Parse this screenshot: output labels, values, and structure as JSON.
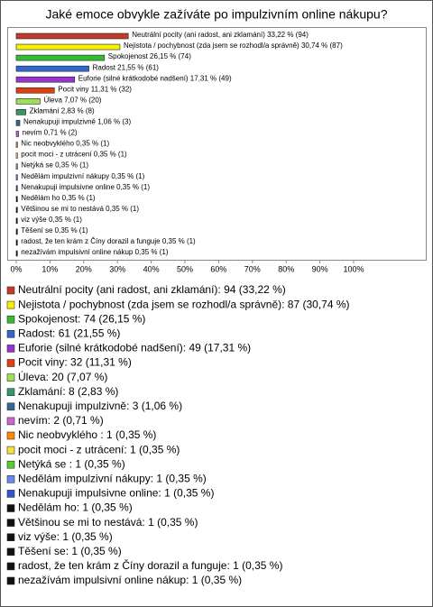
{
  "chart_data": {
    "type": "bar",
    "orientation": "horizontal",
    "title": "Jaké emoce obvykle zažíváte po impulzivním online nákupu?",
    "categories": [
      "Neutrální pocity (ani radost, ani zklamání)",
      "Nejistota / pochybnost (zda jsem se rozhodl/a správně)",
      "Spokojenost",
      "Radost",
      "Euforie (silné krátkodobé nadšení)",
      "Pocit viny",
      "Úleva",
      "Zklamání",
      "Nenakupuji impulzivně",
      "nevím",
      "Nic neobvyklého",
      "pocit moci - z utrácení",
      "Netýká se",
      "Nedělám impulzivní nákupy",
      "Nenakupuji impulsivne online",
      "Nedělám ho",
      "Většinou se mi to nestává",
      "viz výše",
      "Těšení se",
      "radost, že ten krám z Číny dorazil a funguje",
      "nezažívám impulsivní online nákup"
    ],
    "values": [
      33.22,
      30.74,
      26.15,
      21.55,
      17.31,
      11.31,
      7.07,
      2.83,
      1.06,
      0.71,
      0.35,
      0.35,
      0.35,
      0.35,
      0.35,
      0.35,
      0.35,
      0.35,
      0.35,
      0.35,
      0.35
    ],
    "value_labels": [
      "Neutrální pocity (ani radost, ani zklamání) 33,22 % (94)",
      "Nejistota / pochybnost (zda jsem se rozhodl/a správně) 30,74 % (87)",
      "Spokojenost 26,15 % (74)",
      "Radost 21,55 % (61)",
      "Euforie (silné krátkodobé nadšení) 17,31 % (49)",
      "Pocit viny 11,31 % (32)",
      "Úleva 7,07 % (20)",
      "Zklamání 2,83 % (8)",
      "Nenakupuji impulzivně 1,06 % (3)",
      "nevím 0,71 % (2)",
      "Nic neobvyklého  0,35 % (1)",
      "pocit moci - z utrácení 0,35 % (1)",
      "Netýká se  0,35 % (1)",
      "Nedělám impulzivní nákupy 0,35 % (1)",
      "Nenakupuji impulsivne online 0,35 % (1)",
      "Nedělám ho 0,35 % (1)",
      "Většinou se mi to nestává 0,35 % (1)",
      "viz výše 0,35 % (1)",
      "Těšení se 0,35 % (1)",
      "radost, že ten krám z Číny dorazil a funguje 0,35 % (1)",
      "nezažívám impulsivní online nákup 0,35 % (1)"
    ],
    "legend_labels": [
      "Neutrální pocity (ani radost, ani zklamání): 94 (33,22 %)",
      "Nejistota / pochybnost (zda jsem se rozhodl/a správně): 87 (30,74 %)",
      "Spokojenost: 74 (26,15 %)",
      "Radost: 61 (21,55 %)",
      "Euforie (silné krátkodobé nadšení): 49 (17,31 %)",
      "Pocit viny: 32 (11,31 %)",
      "Úleva: 20 (7,07 %)",
      "Zklamání: 8 (2,83 %)",
      "Nenakupuji impulzivně: 3 (1,06 %)",
      "nevím: 2 (0,71 %)",
      "Nic neobvyklého : 1 (0,35 %)",
      "pocit moci - z utrácení: 1 (0,35 %)",
      "Netýká se : 1 (0,35 %)",
      "Nedělám impulzivní nákupy: 1 (0,35 %)",
      "Nenakupuji impulsivne online: 1 (0,35 %)",
      "Nedělám ho: 1 (0,35 %)",
      "Většinou se mi to nestává: 1 (0,35 %)",
      "viz výše: 1 (0,35 %)",
      "Těšení se: 1 (0,35 %)",
      "radost, že ten krám z Číny dorazil a funguje: 1 (0,35 %)",
      "nezažívám impulsivní online nákup: 1 (0,35 %)"
    ],
    "colors": [
      "#c0392b",
      "#f5f000",
      "#33bb33",
      "#3366cc",
      "#9933cc",
      "#e0400f",
      "#99e055",
      "#339966",
      "#336699",
      "#cc66cc",
      "#ff8800",
      "#f5e040",
      "#55cc33",
      "#6688ee",
      "#3355cc",
      "#111111",
      "#111111",
      "#111111",
      "#111111",
      "#111111",
      "#111111"
    ],
    "xlim": [
      0,
      100
    ],
    "xticks": [
      {
        "value": 0,
        "label": "0%"
      },
      {
        "value": 10,
        "label": "10%"
      },
      {
        "value": 20,
        "label": "20%"
      },
      {
        "value": 30,
        "label": "30%"
      },
      {
        "value": 40,
        "label": "40%"
      },
      {
        "value": 50,
        "label": "50%"
      },
      {
        "value": 60,
        "label": "60%"
      },
      {
        "value": 70,
        "label": "70%"
      },
      {
        "value": 80,
        "label": "80%"
      },
      {
        "value": 90,
        "label": "90%"
      },
      {
        "value": 100,
        "label": "100%"
      }
    ],
    "grid": false
  }
}
